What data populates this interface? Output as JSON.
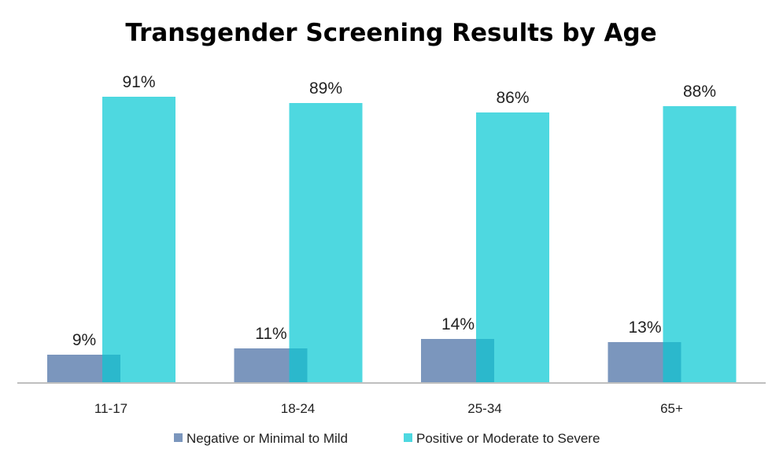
{
  "chart_data": {
    "type": "bar",
    "title": "Transgender Screening Results by Age",
    "categories": [
      "11-17",
      "18-24",
      "25-34",
      "65+"
    ],
    "series": [
      {
        "name": "Negative or Minimal to Mild",
        "values": [
          9,
          11,
          14,
          13
        ],
        "labels": [
          "9%",
          "11%",
          "14%",
          "13%"
        ],
        "color": "#7b96bd"
      },
      {
        "name": "Positive or Moderate to Severe",
        "values": [
          91,
          89,
          86,
          88
        ],
        "labels": [
          "91%",
          "89%",
          "86%",
          "88%"
        ],
        "color": "#4ed8e0"
      }
    ],
    "overlap_color": "#2bb8cc",
    "axis_color": "#bfbfbf",
    "ylim": [
      0,
      100
    ],
    "grid": false,
    "legend": "bottom"
  }
}
